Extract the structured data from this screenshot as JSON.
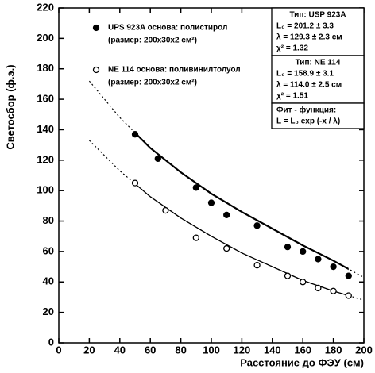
{
  "chart_data": {
    "type": "scatter",
    "x_label": "Расстояние до ФЭУ (см)",
    "y_label": "Светосбор (ф.э.)",
    "xlim": [
      0,
      200
    ],
    "ylim": [
      0,
      220
    ],
    "xticks": [
      0,
      20,
      40,
      60,
      80,
      100,
      120,
      140,
      160,
      180,
      200
    ],
    "yticks": [
      0,
      20,
      40,
      60,
      80,
      100,
      120,
      140,
      160,
      180,
      200,
      220
    ],
    "color": "#000000",
    "series": [
      {
        "name": "UPS 923A основа: полистирол",
        "size_label": "(размер: 200x30x2 см²)",
        "marker": "filled",
        "x": [
          50,
          65,
          90,
          100,
          110,
          130,
          150,
          160,
          170,
          180,
          190
        ],
        "values": [
          137,
          121,
          102,
          92,
          84,
          77,
          63,
          60,
          55,
          50,
          44
        ],
        "fit": {
          "x": [
            20,
            40,
            60,
            80,
            100,
            120,
            140,
            160,
            180,
            200
          ],
          "values": [
            172,
            148,
            128,
            112,
            98,
            86,
            75,
            64,
            54,
            43
          ]
        }
      },
      {
        "name": "NE 114 основа: поливинилтолуол",
        "size_label": "(размер: 200x30x2 см²)",
        "marker": "open",
        "x": [
          50,
          70,
          90,
          110,
          130,
          150,
          160,
          170,
          180,
          190
        ],
        "values": [
          105,
          87,
          69,
          62,
          51,
          44,
          40,
          36,
          34,
          31
        ],
        "fit": {
          "x": [
            20,
            40,
            60,
            80,
            100,
            120,
            140,
            160,
            180,
            200
          ],
          "values": [
            133,
            113,
            96,
            82,
            70,
            59,
            50,
            41,
            34,
            28
          ]
        }
      }
    ],
    "boxes": [
      [
        "Тип: USP 923A",
        "L₀ = 201.2 ± 3.3",
        "λ = 129.3 ± 2.3 см",
        "χ² = 1.32"
      ],
      [
        "Тип: NE 114",
        "L₀ = 158.9 ± 3.1",
        "λ = 114.0 ± 2.5 см",
        "χ² = 1.51"
      ],
      [
        "Фит - функция:",
        "L = L₀ exp (-x / λ)"
      ]
    ]
  }
}
